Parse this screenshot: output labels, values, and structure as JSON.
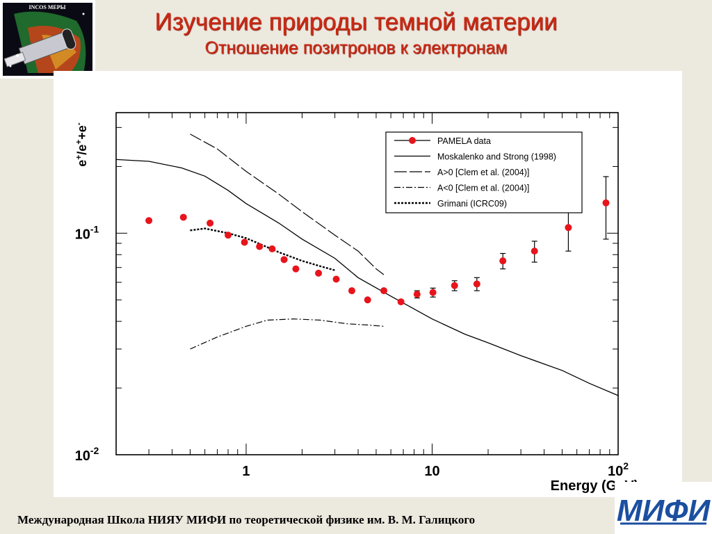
{
  "header": {
    "title": "Изучение природы темной материи",
    "subtitle": "Отношение позитронов к электронам",
    "logo_text": "INCOS МЕРЫ"
  },
  "footer": {
    "text": "Международная Школа НИЯУ МИФИ по теоретической физике им. В. М. Галицкого",
    "logo_text": "МИФИ"
  },
  "chart_data": {
    "type": "scatter",
    "xlabel": "Energy  (GeV)",
    "ylabel": "e+/e++e-",
    "x_scale": "log",
    "y_scale": "log",
    "xlim": [
      0.2,
      100
    ],
    "ylim": [
      0.01,
      0.35
    ],
    "x_ticks": [
      {
        "value": 1,
        "label": "1"
      },
      {
        "value": 10,
        "label": "10"
      },
      {
        "value": 100,
        "label": "10",
        "sup": "2"
      }
    ],
    "y_ticks": [
      {
        "value": 0.01,
        "label": "10",
        "sup": "-2"
      },
      {
        "value": 0.1,
        "label": "10",
        "sup": "-1"
      }
    ],
    "legend_position": "top-right",
    "legend": [
      {
        "label": "PAMELA data",
        "style": "marker"
      },
      {
        "label": "Moskalenko and Strong (1998)",
        "style": "solid"
      },
      {
        "label": "A>0 [Clem et al. (2004)]",
        "style": "longdash"
      },
      {
        "label": "A<0 [Clem et al. (2004)]",
        "style": "dashdot"
      },
      {
        "label": "Grimani (ICRC09)",
        "style": "dotted"
      }
    ],
    "series": [
      {
        "name": "PAMELA data",
        "type": "scatter",
        "color": "#e8141b",
        "points": [
          {
            "x": 0.3,
            "y": 0.114
          },
          {
            "x": 0.46,
            "y": 0.118
          },
          {
            "x": 0.64,
            "y": 0.111
          },
          {
            "x": 0.8,
            "y": 0.098
          },
          {
            "x": 0.98,
            "y": 0.091
          },
          {
            "x": 1.18,
            "y": 0.087
          },
          {
            "x": 1.38,
            "y": 0.085
          },
          {
            "x": 1.6,
            "y": 0.076
          },
          {
            "x": 1.85,
            "y": 0.069
          },
          {
            "x": 2.45,
            "y": 0.066
          },
          {
            "x": 3.05,
            "y": 0.062
          },
          {
            "x": 3.7,
            "y": 0.055
          },
          {
            "x": 4.5,
            "y": 0.05
          },
          {
            "x": 5.5,
            "y": 0.055
          },
          {
            "x": 6.8,
            "y": 0.049
          },
          {
            "x": 8.3,
            "y": 0.053,
            "err": 0.002
          },
          {
            "x": 10.1,
            "y": 0.054,
            "err": 0.0025
          },
          {
            "x": 13.2,
            "y": 0.058,
            "err": 0.003
          },
          {
            "x": 17.4,
            "y": 0.059,
            "err": 0.004
          },
          {
            "x": 24.0,
            "y": 0.075,
            "err": 0.006
          },
          {
            "x": 35.5,
            "y": 0.083,
            "err": 0.009
          },
          {
            "x": 54.0,
            "y": 0.106,
            "err": 0.023
          },
          {
            "x": 86.0,
            "y": 0.137,
            "err": 0.043
          }
        ]
      },
      {
        "name": "Moskalenko and Strong (1998)",
        "type": "line",
        "dash": "solid",
        "points": [
          {
            "x": 0.2,
            "y": 0.215
          },
          {
            "x": 0.3,
            "y": 0.211
          },
          {
            "x": 0.45,
            "y": 0.197
          },
          {
            "x": 0.6,
            "y": 0.181
          },
          {
            "x": 0.8,
            "y": 0.156
          },
          {
            "x": 1.0,
            "y": 0.136
          },
          {
            "x": 1.5,
            "y": 0.111
          },
          {
            "x": 2.0,
            "y": 0.094
          },
          {
            "x": 3.0,
            "y": 0.077
          },
          {
            "x": 4.0,
            "y": 0.063
          },
          {
            "x": 6.0,
            "y": 0.052
          },
          {
            "x": 10,
            "y": 0.041
          },
          {
            "x": 15,
            "y": 0.035
          },
          {
            "x": 20,
            "y": 0.032
          },
          {
            "x": 30,
            "y": 0.028
          },
          {
            "x": 50,
            "y": 0.024
          },
          {
            "x": 70,
            "y": 0.021
          },
          {
            "x": 100,
            "y": 0.0185
          }
        ]
      },
      {
        "name": "A>0 [Clem et al. (2004)]",
        "type": "line",
        "dash": "longdash",
        "points": [
          {
            "x": 0.5,
            "y": 0.28
          },
          {
            "x": 0.7,
            "y": 0.24
          },
          {
            "x": 1.0,
            "y": 0.19
          },
          {
            "x": 1.5,
            "y": 0.15
          },
          {
            "x": 2.0,
            "y": 0.125
          },
          {
            "x": 3.0,
            "y": 0.098
          },
          {
            "x": 4.0,
            "y": 0.083
          },
          {
            "x": 5.0,
            "y": 0.069
          },
          {
            "x": 5.5,
            "y": 0.065
          }
        ]
      },
      {
        "name": "A<0 [Clem et al. (2004)]",
        "type": "line",
        "dash": "dashdot",
        "points": [
          {
            "x": 0.5,
            "y": 0.03
          },
          {
            "x": 0.7,
            "y": 0.034
          },
          {
            "x": 1.0,
            "y": 0.038
          },
          {
            "x": 1.3,
            "y": 0.0405
          },
          {
            "x": 1.8,
            "y": 0.041
          },
          {
            "x": 2.5,
            "y": 0.0405
          },
          {
            "x": 3.5,
            "y": 0.039
          },
          {
            "x": 4.5,
            "y": 0.0385
          },
          {
            "x": 5.5,
            "y": 0.038
          }
        ]
      },
      {
        "name": "Grimani (ICRC09)",
        "type": "line",
        "dash": "dotted",
        "points": [
          {
            "x": 0.5,
            "y": 0.103
          },
          {
            "x": 0.6,
            "y": 0.105
          },
          {
            "x": 0.8,
            "y": 0.1
          },
          {
            "x": 1.0,
            "y": 0.095
          },
          {
            "x": 1.2,
            "y": 0.089
          },
          {
            "x": 1.5,
            "y": 0.082
          },
          {
            "x": 2.0,
            "y": 0.075
          },
          {
            "x": 2.5,
            "y": 0.071
          },
          {
            "x": 3.0,
            "y": 0.068
          }
        ]
      }
    ]
  }
}
